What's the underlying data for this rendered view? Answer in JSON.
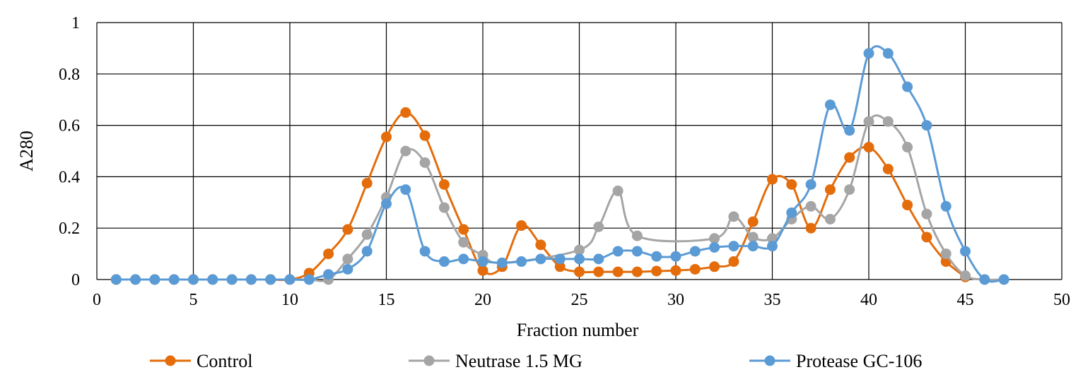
{
  "chart_data": {
    "type": "line",
    "title": "",
    "xlabel": "Fraction number",
    "ylabel": "A280",
    "xlim": [
      0,
      50
    ],
    "ylim": [
      0,
      1
    ],
    "xticks": [
      0,
      5,
      10,
      15,
      20,
      25,
      30,
      35,
      40,
      45,
      50
    ],
    "yticks": [
      0,
      0.2,
      0.4,
      0.6,
      0.8,
      1
    ],
    "ytick_labels": [
      "0",
      "0.2",
      "0.4",
      "0.6",
      "0.8",
      "1"
    ],
    "grid": true,
    "legend_position": "bottom",
    "smooth": true,
    "x": [
      1,
      2,
      3,
      4,
      5,
      6,
      7,
      8,
      9,
      10,
      11,
      12,
      13,
      14,
      15,
      16,
      17,
      18,
      19,
      20,
      21,
      22,
      23,
      24,
      25,
      26,
      27,
      28,
      29,
      30,
      31,
      32,
      33,
      34,
      35,
      36,
      37,
      38,
      39,
      40,
      41,
      42,
      43,
      44,
      45,
      46,
      47
    ],
    "series": [
      {
        "name": "Control",
        "color": "#E46C0A",
        "values": [
          0,
          0,
          0,
          0,
          0,
          0,
          0,
          0,
          0,
          0,
          0.025,
          0.1,
          0.195,
          0.375,
          0.555,
          0.65,
          0.56,
          0.37,
          0.195,
          0.035,
          0.05,
          0.21,
          0.135,
          0.05,
          0.03,
          0.03,
          0.03,
          0.03,
          0.033,
          0.035,
          0.04,
          0.05,
          0.07,
          0.225,
          0.39,
          0.37,
          0.2,
          0.35,
          0.475,
          0.515,
          0.43,
          0.29,
          0.165,
          0.07,
          0.01,
          null,
          null
        ]
      },
      {
        "name": "Neutrase 1.5 MG",
        "color": "#A5A5A5",
        "values": [
          0,
          0,
          0,
          0,
          0,
          0,
          0,
          0,
          0,
          0,
          0,
          0,
          0.08,
          0.175,
          0.32,
          0.5,
          0.455,
          0.28,
          0.145,
          0.095,
          0.065,
          null,
          null,
          null,
          0.115,
          0.205,
          0.345,
          0.17,
          null,
          null,
          null,
          0.16,
          0.245,
          0.165,
          0.16,
          0.235,
          0.285,
          0.235,
          0.35,
          0.615,
          0.615,
          0.515,
          0.255,
          0.1,
          0.015,
          0,
          0
        ]
      },
      {
        "name": "Protease GC-106",
        "color": "#5B9BD5",
        "values": [
          0,
          0,
          0,
          0,
          0,
          0,
          0,
          0,
          0,
          0,
          0,
          0.02,
          0.04,
          0.11,
          0.295,
          0.35,
          0.11,
          0.07,
          0.08,
          0.07,
          0.065,
          0.07,
          0.08,
          0.08,
          0.08,
          0.08,
          0.11,
          0.11,
          0.09,
          0.09,
          0.11,
          0.125,
          0.13,
          0.13,
          0.13,
          0.26,
          0.37,
          0.68,
          0.58,
          0.88,
          0.88,
          0.75,
          0.6,
          0.285,
          0.11,
          0,
          0
        ]
      }
    ]
  }
}
